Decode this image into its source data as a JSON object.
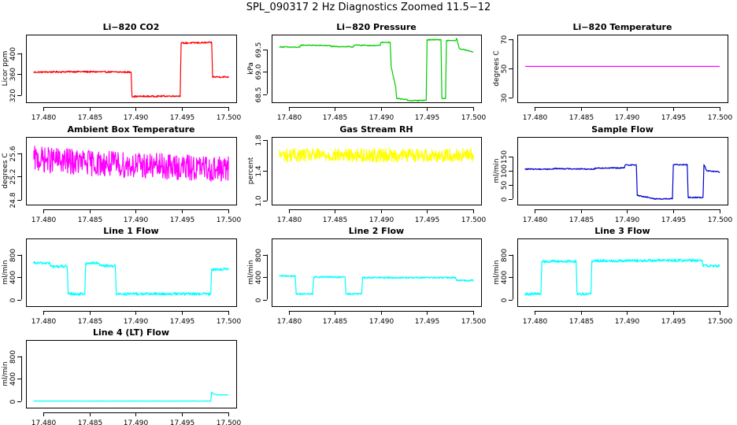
{
  "title": "SPL_090317  2 Hz Diagnostics Zoomed 11.5−12",
  "chart_data": [
    {
      "type": "line",
      "title": "Li−820 CO2",
      "xlabel": "",
      "ylabel": "Licor ppm",
      "xlim": [
        17.479,
        17.5
      ],
      "ylim": [
        310,
        432
      ],
      "xticks": [
        17.48,
        17.485,
        17.49,
        17.495,
        17.5
      ],
      "xtick_labels": [
        "17.480",
        "17.485",
        "17.490",
        "17.495",
        "17.500"
      ],
      "yticks": [
        320,
        360,
        400
      ],
      "ytick_labels": [
        "320",
        "360",
        "400"
      ],
      "color": "#ff0000",
      "noise": 1.5,
      "series": [
        {
          "x": [
            17.479,
            17.4835,
            17.4836,
            17.4895,
            17.4896,
            17.4948,
            17.4949,
            17.4982,
            17.4983,
            17.5
          ],
          "y": [
            364,
            365,
            365,
            364,
            318,
            319,
            419,
            420,
            355,
            355
          ]
        }
      ]
    },
    {
      "type": "line",
      "title": "Li−820 Pressure",
      "xlabel": "",
      "ylabel": "kPa",
      "xlim": [
        17.479,
        17.5
      ],
      "ylim": [
        68.35,
        69.8
      ],
      "xticks": [
        17.48,
        17.485,
        17.49,
        17.495,
        17.5
      ],
      "xtick_labels": [
        "17.480",
        "17.485",
        "17.490",
        "17.495",
        "17.500"
      ],
      "yticks": [
        68.5,
        69.0,
        69.5
      ],
      "ytick_labels": [
        "68.5",
        "69.0",
        "69.5"
      ],
      "color": "#00cc00",
      "noise": 0.01,
      "series": [
        {
          "x": [
            17.479,
            17.4812,
            17.4813,
            17.4845,
            17.4846,
            17.487,
            17.4871,
            17.4899,
            17.49,
            17.491,
            17.4911,
            17.4916,
            17.4917,
            17.4928,
            17.4929,
            17.4949,
            17.495,
            17.4965,
            17.4966,
            17.497,
            17.4971,
            17.4981,
            17.4982,
            17.4985,
            17.5
          ],
          "y": [
            69.56,
            69.55,
            69.6,
            69.59,
            69.57,
            69.56,
            69.6,
            69.59,
            69.66,
            69.66,
            69.12,
            68.65,
            68.4,
            68.38,
            68.35,
            68.36,
            69.72,
            69.72,
            68.4,
            68.4,
            69.7,
            69.7,
            69.75,
            69.52,
            69.45
          ]
        }
      ]
    },
    {
      "type": "line",
      "title": "Li−820 Temperature",
      "xlabel": "",
      "ylabel": "degrees C",
      "xlim": [
        17.479,
        17.5
      ],
      "ylim": [
        28,
        72
      ],
      "xticks": [
        17.48,
        17.485,
        17.49,
        17.495,
        17.5
      ],
      "xtick_labels": [
        "17.480",
        "17.485",
        "17.490",
        "17.495",
        "17.500"
      ],
      "yticks": [
        30,
        50,
        70
      ],
      "ytick_labels": [
        "30",
        "50",
        "70"
      ],
      "color": "#ff00ff",
      "noise": 0,
      "series": [
        {
          "x": [
            17.479,
            17.5
          ],
          "y": [
            51.4,
            51.4
          ]
        }
      ]
    },
    {
      "type": "line",
      "title": "Ambient Box Temperature",
      "xlabel": "",
      "ylabel": "degrees C",
      "xlim": [
        17.479,
        17.5
      ],
      "ylim": [
        24.75,
        25.85
      ],
      "xticks": [
        17.48,
        17.485,
        17.49,
        17.495,
        17.5
      ],
      "xtick_labels": [
        "17.480",
        "17.485",
        "17.490",
        "17.495",
        "17.500"
      ],
      "yticks": [
        24.8,
        25.2,
        25.6
      ],
      "ytick_labels": [
        "24.8",
        "25.2",
        "25.6"
      ],
      "color": "#ff00ff",
      "noise": 0.22,
      "series": [
        {
          "x": [
            17.479,
            17.4865,
            17.5
          ],
          "y": [
            25.5,
            25.42,
            25.32
          ]
        }
      ]
    },
    {
      "type": "line",
      "title": "Gas Stream RH",
      "xlabel": "",
      "ylabel": "percent",
      "xlim": [
        17.479,
        17.5
      ],
      "ylim": [
        0.97,
        1.82
      ],
      "xticks": [
        17.48,
        17.485,
        17.49,
        17.495,
        17.5
      ],
      "xtick_labels": [
        "17.480",
        "17.485",
        "17.490",
        "17.495",
        "17.500"
      ],
      "yticks": [
        1.0,
        1.4,
        1.8
      ],
      "ytick_labels": [
        "1.0",
        "1.4",
        "1.8"
      ],
      "color": "#ffff00",
      "noise": 0.09,
      "series": [
        {
          "x": [
            17.479,
            17.5
          ],
          "y": [
            1.6,
            1.6
          ]
        }
      ]
    },
    {
      "type": "line",
      "title": "Sample Flow",
      "xlabel": "",
      "ylabel": "ml/min",
      "xlim": [
        17.479,
        17.5
      ],
      "ylim": [
        -15,
        215
      ],
      "xticks": [
        17.48,
        17.485,
        17.49,
        17.495,
        17.5
      ],
      "xtick_labels": [
        "17.480",
        "17.485",
        "17.490",
        "17.495",
        "17.500"
      ],
      "yticks": [
        0,
        50,
        100,
        150
      ],
      "ytick_labels": [
        "0",
        "50",
        "100",
        "150"
      ],
      "color": "#0000cc",
      "noise": 2,
      "series": [
        {
          "x": [
            17.479,
            17.482,
            17.4821,
            17.4865,
            17.4866,
            17.4897,
            17.4898,
            17.491,
            17.4911,
            17.4928,
            17.4929,
            17.4949,
            17.495,
            17.4965,
            17.4966,
            17.4982,
            17.4983,
            17.4986,
            17.5
          ],
          "y": [
            106,
            106,
            108,
            106,
            110,
            110,
            121,
            121,
            12,
            2,
            0,
            0,
            122,
            122,
            5,
            5,
            122,
            100,
            96
          ]
        }
      ]
    },
    {
      "type": "line",
      "title": "Line 1 Flow",
      "xlabel": "",
      "ylabel": "ml/min",
      "xlim": [
        17.479,
        17.5
      ],
      "ylim": [
        -90,
        1060
      ],
      "xticks": [
        17.48,
        17.485,
        17.49,
        17.495,
        17.5
      ],
      "xtick_labels": [
        "17.480",
        "17.485",
        "17.490",
        "17.495",
        "17.500"
      ],
      "yticks": [
        0,
        400,
        800
      ],
      "ytick_labels": [
        "0",
        "400",
        "800"
      ],
      "color": "#00ffff",
      "noise": 25,
      "series": [
        {
          "x": [
            17.479,
            17.4807,
            17.4808,
            17.4826,
            17.4827,
            17.4845,
            17.4846,
            17.486,
            17.4861,
            17.4878,
            17.4879,
            17.4981,
            17.4982,
            17.5
          ],
          "y": [
            650,
            650,
            590,
            590,
            100,
            100,
            650,
            650,
            600,
            600,
            100,
            100,
            540,
            540
          ]
        }
      ]
    },
    {
      "type": "line",
      "title": "Line 2 Flow",
      "xlabel": "",
      "ylabel": "ml/min",
      "xlim": [
        17.479,
        17.5
      ],
      "ylim": [
        -90,
        1060
      ],
      "xticks": [
        17.48,
        17.485,
        17.49,
        17.495,
        17.5
      ],
      "xtick_labels": [
        "17.480",
        "17.485",
        "17.490",
        "17.495",
        "17.500"
      ],
      "yticks": [
        0,
        400,
        800
      ],
      "ytick_labels": [
        "0",
        "400",
        "800"
      ],
      "color": "#00ffff",
      "noise": 15,
      "series": [
        {
          "x": [
            17.479,
            17.4807,
            17.4808,
            17.4826,
            17.4827,
            17.4861,
            17.4862,
            17.4879,
            17.488,
            17.4981,
            17.4982,
            17.5
          ],
          "y": [
            420,
            420,
            100,
            100,
            400,
            400,
            100,
            100,
            390,
            390,
            340,
            340
          ]
        }
      ]
    },
    {
      "type": "line",
      "title": "Line 3 Flow",
      "xlabel": "",
      "ylabel": "ml/min",
      "xlim": [
        17.479,
        17.5
      ],
      "ylim": [
        -90,
        1060
      ],
      "xticks": [
        17.48,
        17.485,
        17.49,
        17.495,
        17.5
      ],
      "xtick_labels": [
        "17.480",
        "17.485",
        "17.490",
        "17.495",
        "17.500"
      ],
      "yticks": [
        0,
        400,
        800
      ],
      "ytick_labels": [
        "0",
        "400",
        "800"
      ],
      "color": "#00ffff",
      "noise": 25,
      "series": [
        {
          "x": [
            17.479,
            17.4807,
            17.4808,
            17.4845,
            17.4846,
            17.4861,
            17.4862,
            17.4981,
            17.4982,
            17.5
          ],
          "y": [
            100,
            100,
            680,
            680,
            100,
            100,
            690,
            700,
            600,
            600
          ]
        }
      ]
    },
    {
      "type": "line",
      "title": "Line 4 (LT) Flow",
      "xlabel": "",
      "ylabel": "ml/min",
      "xlim": [
        17.479,
        17.5
      ],
      "ylim": [
        -90,
        1060
      ],
      "xticks": [
        17.48,
        17.485,
        17.49,
        17.495,
        17.5
      ],
      "xtick_labels": [
        "17.480",
        "17.485",
        "17.490",
        "17.495",
        "17.500"
      ],
      "yticks": [
        0,
        400,
        800
      ],
      "ytick_labels": [
        "0",
        "400",
        "800"
      ],
      "color": "#00ffff",
      "noise": 3,
      "series": [
        {
          "x": [
            17.479,
            17.4981,
            17.4982,
            17.4984,
            17.4988,
            17.5
          ],
          "y": [
            0,
            0,
            160,
            125,
            110,
            110
          ]
        }
      ]
    }
  ]
}
